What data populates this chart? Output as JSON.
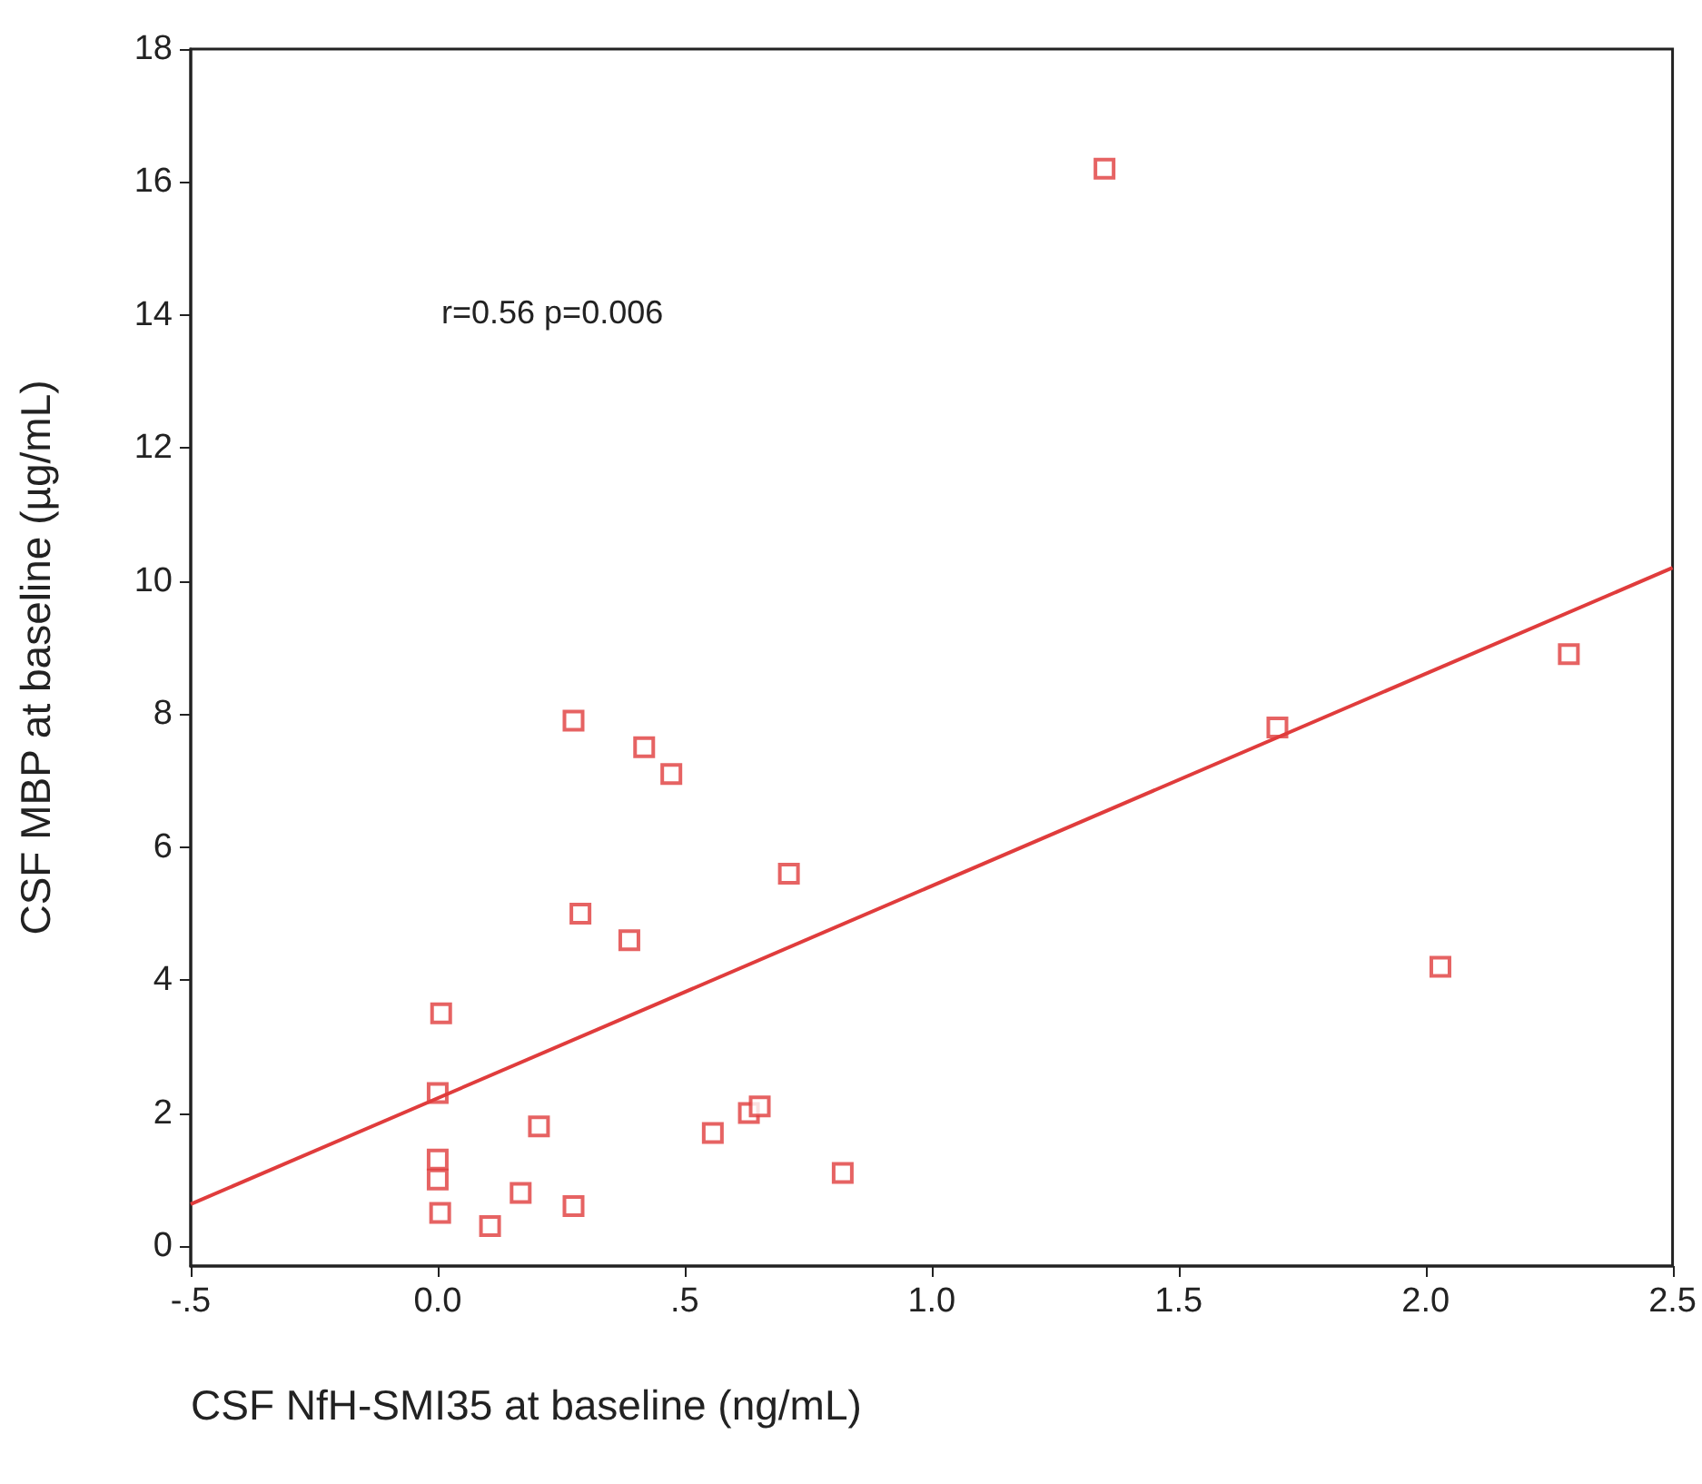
{
  "chart_data": {
    "type": "scatter",
    "xlabel": "CSF NfH-SMI35 at baseline (ng/mL)",
    "ylabel": "CSF MBP at baseline (µg/mL)",
    "annotations": [
      "r=0.56 p=0.006"
    ],
    "xlim": [
      -0.5,
      2.5
    ],
    "xticks": [
      {
        "value": -0.5,
        "label": "-.5"
      },
      {
        "value": 0,
        "label": "0.0"
      },
      {
        "value": 0.5,
        "label": ".5"
      },
      {
        "value": 1,
        "label": "1.0"
      },
      {
        "value": 1.5,
        "label": "1.5"
      },
      {
        "value": 2,
        "label": "2.0"
      },
      {
        "value": 2.5,
        "label": "2.5"
      }
    ],
    "ylim": [
      -0.3,
      18
    ],
    "yticks": [
      0,
      2,
      4,
      6,
      8,
      10,
      12,
      14,
      16,
      18
    ],
    "grid": false,
    "marker": "square",
    "series": [
      {
        "color": "#e03c3c",
        "x": [
          1.35,
          2.29,
          1.7,
          2.03,
          0.275,
          0.418,
          0.473,
          0.711,
          0.289,
          0.388,
          0.007,
          0.0,
          0.0,
          0.0,
          0.005,
          0.205,
          0.557,
          0.63,
          0.652,
          0.82,
          0.106,
          0.168,
          0.275
        ],
        "values": [
          16.2,
          8.9,
          7.8,
          4.2,
          7.9,
          7.5,
          7.1,
          5.6,
          5.0,
          4.6,
          3.5,
          2.3,
          1.3,
          1.0,
          0.5,
          1.8,
          1.7,
          2.0,
          2.1,
          1.1,
          0.3,
          0.8,
          0.6
        ]
      },
      {
        "type": "line",
        "marker": "none",
        "color": "#e03c3c",
        "x": [
          -0.5,
          2.5
        ],
        "values": [
          0.63,
          10.2
        ]
      }
    ]
  }
}
